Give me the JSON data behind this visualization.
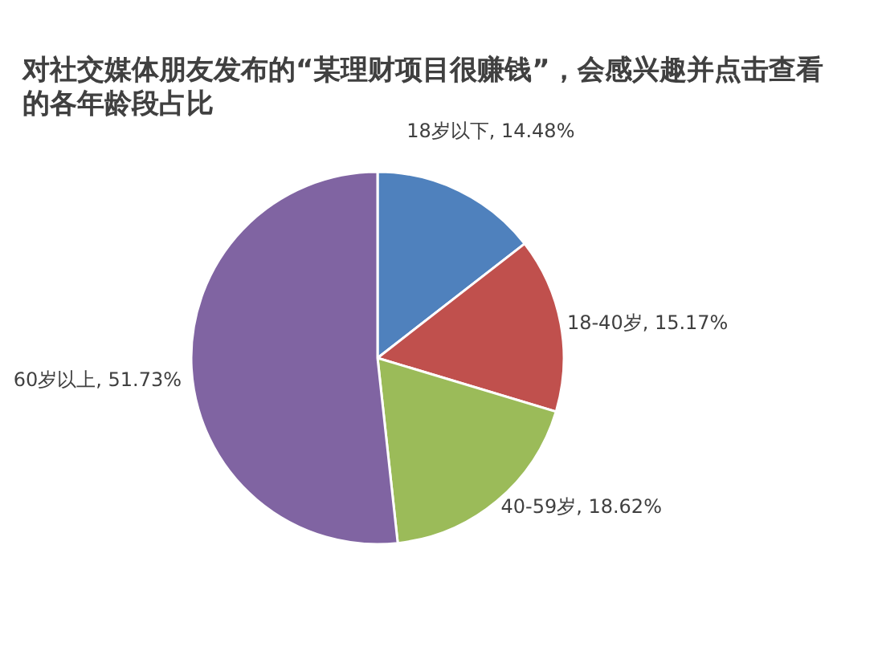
{
  "chart_data": {
    "type": "pie",
    "title": "对社交媒体朋友发布的“某理财项目很赚钱”，会感兴趣并点击查看的各年龄段占比",
    "categories": [
      "18岁以下",
      "18-40岁",
      "40-59岁",
      "60岁以上"
    ],
    "value_labels": [
      "14.48%",
      "15.17%",
      "18.62%",
      "51.73%"
    ],
    "values": [
      14.48,
      15.17,
      18.62,
      51.73
    ],
    "colors": [
      "#4f81bd",
      "#c0504d",
      "#9bbb59",
      "#8064a2"
    ],
    "data_labels": false
  }
}
